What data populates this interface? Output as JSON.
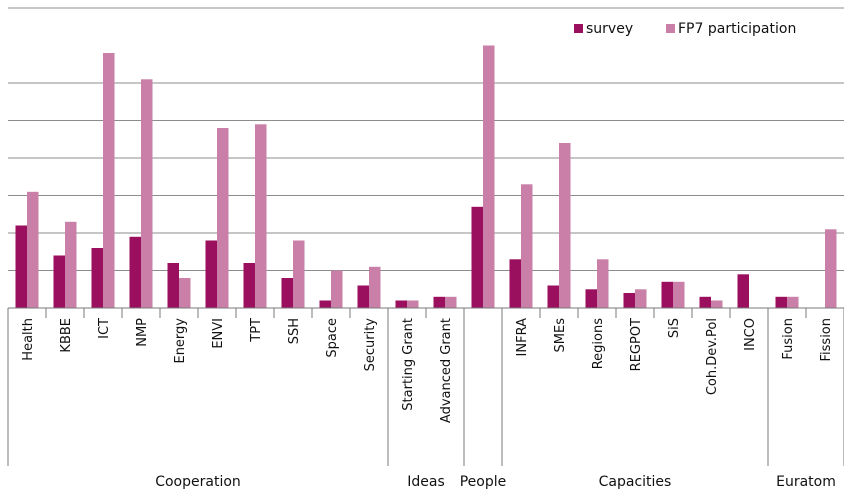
{
  "chart_data": {
    "type": "bar",
    "title": "",
    "xlabel": "",
    "ylabel": "",
    "ylim": [
      0,
      7
    ],
    "grid": true,
    "legend_position": "top-right",
    "categories": [
      "Health",
      "KBBE",
      "ICT",
      "NMP",
      "Energy",
      "ENVI",
      "TPT",
      "SSH",
      "Space",
      "Security",
      "Starting Grant",
      "Advanced Grant",
      "",
      "INFRA",
      "SMEs",
      "Regions",
      "REGPOT",
      "SiS",
      "Coh.Dev.Pol",
      "INCO",
      "Fusion",
      "Fission"
    ],
    "groups": [
      {
        "label": "Cooperation",
        "count": 10
      },
      {
        "label": "Ideas",
        "count": 2
      },
      {
        "label": "People",
        "count": 1
      },
      {
        "label": "Capacities",
        "count": 7
      },
      {
        "label": "Euratom",
        "count": 2
      }
    ],
    "series": [
      {
        "name": "survey",
        "color": "#9b0f5f",
        "values": [
          2.2,
          1.4,
          1.6,
          1.9,
          1.2,
          1.8,
          1.2,
          0.8,
          0.2,
          0.6,
          0.2,
          0.3,
          2.7,
          1.3,
          0.6,
          0.5,
          0.4,
          0.7,
          0.3,
          0.9,
          0.3,
          0.0
        ]
      },
      {
        "name": "FP7 participation",
        "color": "#c97fa8",
        "values": [
          3.1,
          2.3,
          6.8,
          6.1,
          0.8,
          4.8,
          4.9,
          1.8,
          1.0,
          1.1,
          0.2,
          0.3,
          7.0,
          3.3,
          4.4,
          1.3,
          0.5,
          0.7,
          0.2,
          0.0,
          0.3,
          2.1
        ]
      }
    ]
  }
}
